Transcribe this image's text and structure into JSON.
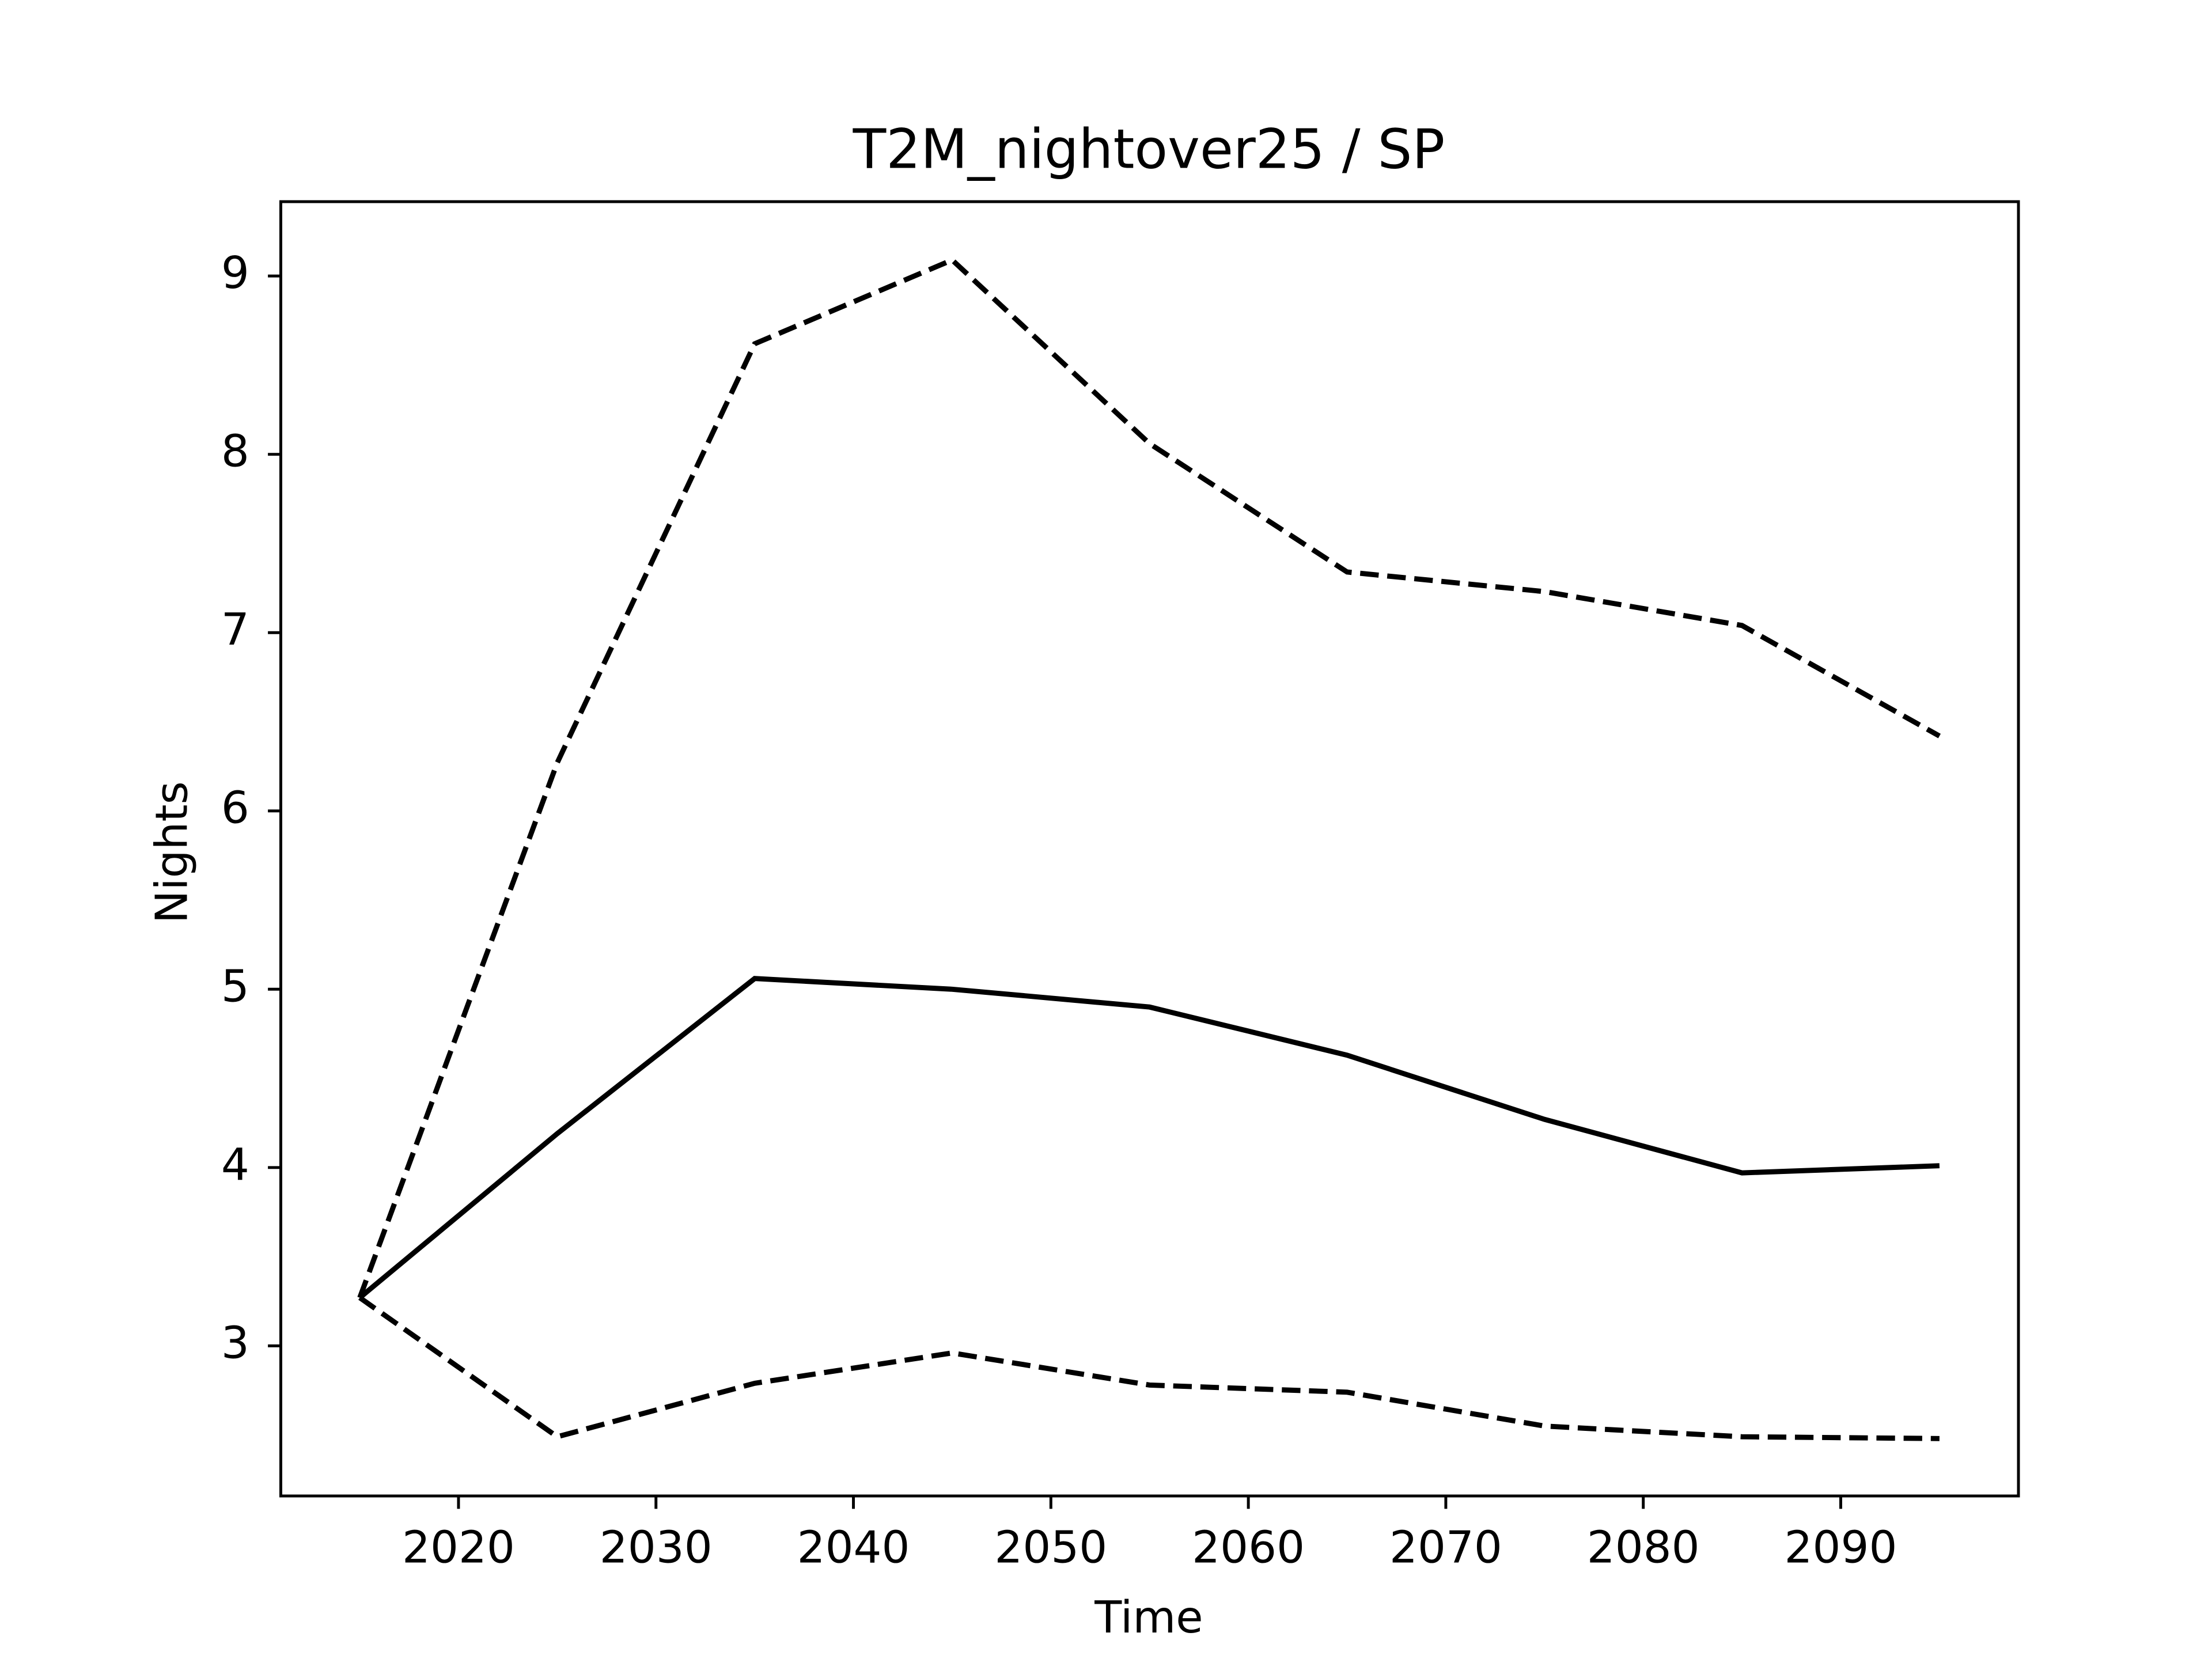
{
  "chart_data": {
    "type": "line",
    "title": "T2M_nightover25 / SP",
    "xlabel": "Time",
    "ylabel": "Nights",
    "x": [
      2015,
      2025,
      2035,
      2045,
      2055,
      2065,
      2075,
      2085,
      2095
    ],
    "series": [
      {
        "color": "#000000",
        "linestyle": "solid",
        "values": [
          3.27,
          4.19,
          5.06,
          5.0,
          4.9,
          4.63,
          4.27,
          3.97,
          4.01
        ]
      },
      {
        "color": "#000000",
        "linestyle": "dashed",
        "values": [
          3.27,
          6.27,
          8.62,
          9.09,
          8.06,
          7.34,
          7.23,
          7.04,
          6.42
        ]
      },
      {
        "color": "#000000",
        "linestyle": "dashed",
        "values": [
          3.27,
          2.49,
          2.79,
          2.96,
          2.78,
          2.74,
          2.55,
          2.49,
          2.48
        ]
      }
    ],
    "xlim": [
      2011,
      2099
    ],
    "ylim": [
      2.158,
      9.417
    ],
    "xticks": [
      2020,
      2030,
      2040,
      2050,
      2060,
      2070,
      2080,
      2090
    ],
    "yticks": [
      3,
      4,
      5,
      6,
      7,
      8,
      9
    ],
    "grid": false
  }
}
